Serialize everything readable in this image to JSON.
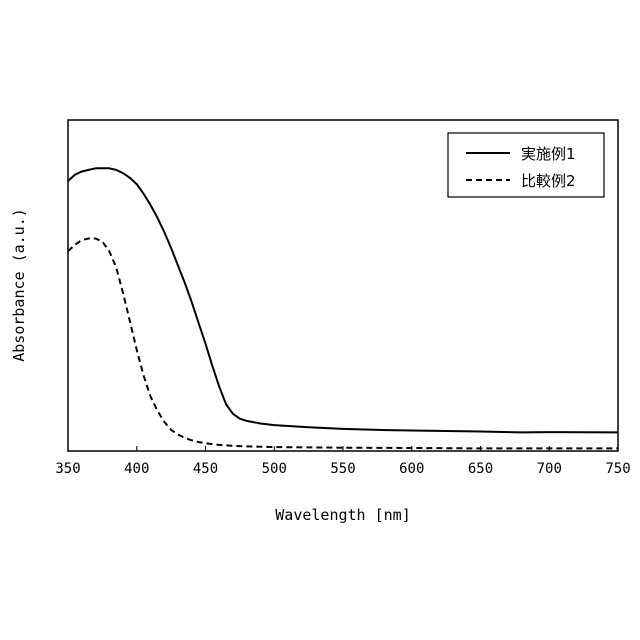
{
  "chart_data": {
    "type": "line",
    "xlabel": "Wavelength [nm]",
    "ylabel": "Absorbance (a.u.)",
    "xlim": [
      350,
      750
    ],
    "ylim": [
      0,
      1
    ],
    "xticks": [
      350,
      400,
      450,
      500,
      550,
      600,
      650,
      700,
      750
    ],
    "yticks": [],
    "grid": false,
    "legend_position": "top-right",
    "series": [
      {
        "name": "実施例1",
        "line_style": "solid",
        "color": "#000000",
        "x": [
          350,
          355,
          360,
          365,
          370,
          375,
          380,
          385,
          390,
          395,
          400,
          405,
          410,
          415,
          420,
          425,
          430,
          435,
          440,
          445,
          450,
          455,
          460,
          465,
          470,
          475,
          480,
          490,
          500,
          525,
          550,
          575,
          600,
          650,
          680,
          700,
          750
        ],
        "y": [
          0.84,
          0.86,
          0.87,
          0.875,
          0.88,
          0.88,
          0.88,
          0.875,
          0.865,
          0.85,
          0.83,
          0.8,
          0.765,
          0.725,
          0.68,
          0.63,
          0.575,
          0.52,
          0.46,
          0.395,
          0.33,
          0.26,
          0.195,
          0.14,
          0.11,
          0.095,
          0.088,
          0.08,
          0.075,
          0.068,
          0.063,
          0.06,
          0.058,
          0.055,
          0.052,
          0.053,
          0.052
        ]
      },
      {
        "name": "比較例2",
        "line_style": "dashed",
        "color": "#000000",
        "x": [
          350,
          355,
          360,
          365,
          370,
          375,
          380,
          385,
          390,
          395,
          400,
          405,
          410,
          415,
          420,
          425,
          430,
          435,
          440,
          445,
          450,
          460,
          470,
          480,
          500,
          550,
          600,
          650,
          700,
          750
        ],
        "y": [
          0.62,
          0.64,
          0.655,
          0.66,
          0.66,
          0.65,
          0.62,
          0.57,
          0.49,
          0.4,
          0.31,
          0.23,
          0.165,
          0.12,
          0.085,
          0.06,
          0.045,
          0.035,
          0.027,
          0.022,
          0.018,
          0.013,
          0.01,
          0.008,
          0.006,
          0.004,
          0.003,
          0.002,
          0.002,
          0.002
        ]
      }
    ]
  }
}
